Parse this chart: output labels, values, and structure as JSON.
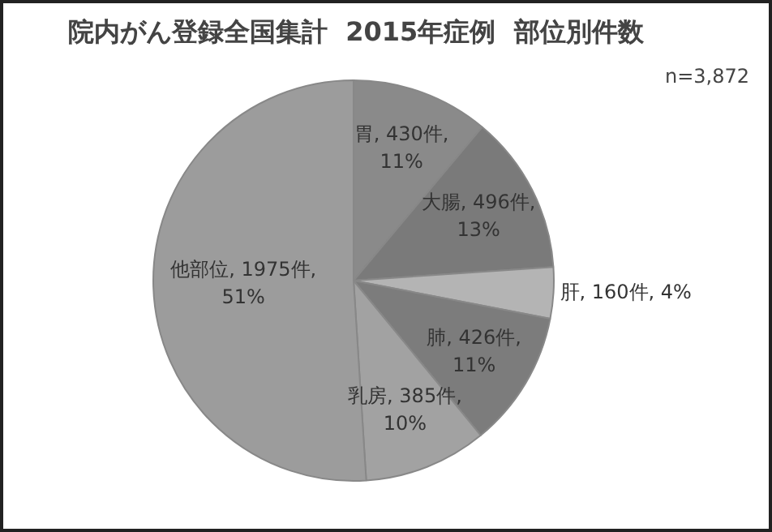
{
  "chart_data": {
    "type": "pie",
    "title": "院内がん登録全国集計  2015年症例  部位別件数",
    "categories": [
      "胃",
      "大腸",
      "肝",
      "肺",
      "乳房",
      "他部位"
    ],
    "values": [
      430,
      496,
      160,
      426,
      385,
      1975
    ],
    "value_labels": [
      "430件, 11%",
      "496件, 13%",
      "160件, 4%",
      "426件, 11%",
      "385件, 10%",
      "1975件, 51%"
    ],
    "colors": [
      "#8a8a8a",
      "#7a7a7a",
      "#b4b4b4",
      "#7c7c7c",
      "#a2a2a2",
      "#9c9c9c"
    ],
    "annotations": [
      "n=3,872"
    ],
    "legend": false
  }
}
